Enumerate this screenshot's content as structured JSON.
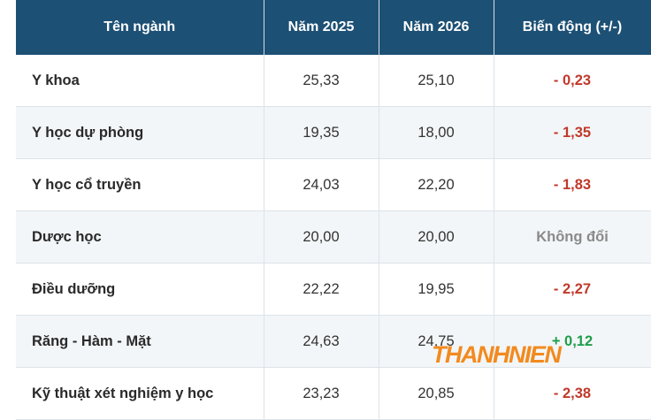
{
  "table": {
    "header": [
      "Tên ngành",
      "Năm 2025",
      "Năm 2026",
      "Biến động (+/-)"
    ],
    "rows": [
      [
        "Y khoa",
        "25,33",
        "25,10",
        "- 0,23"
      ],
      [
        "Y học dự phòng",
        "19,35",
        "18,00",
        "- 1,35"
      ],
      [
        "Y học cổ truyền",
        "24,03",
        "22,20",
        "- 1,83"
      ],
      [
        "Dược học",
        "20,00",
        "20,00",
        "Không đổi"
      ],
      [
        "Điều dưỡng",
        "22,22",
        "19,95",
        "- 2,27"
      ],
      [
        "Răng - Hàm - Mặt",
        "24,63",
        "24,75",
        "+ 0,12"
      ],
      [
        "Kỹ thuật xét nghiệm y học",
        "23,23",
        "20,85",
        "- 2,38"
      ]
    ]
  },
  "watermark": "THANHNIEN"
}
